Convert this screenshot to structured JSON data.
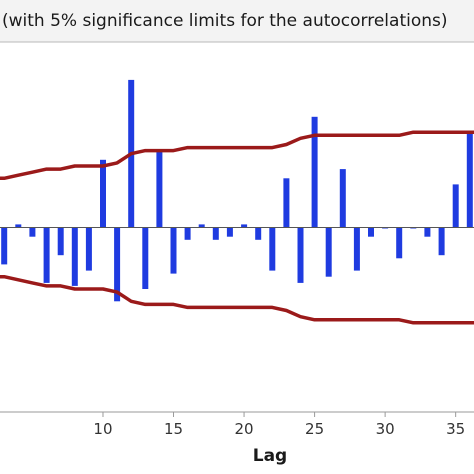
{
  "chart_data": {
    "type": "bar",
    "subtitle": "(with 5% significance limits for the autocorrelations)",
    "xlabel": "Lag",
    "ylabel": "",
    "xlim": [
      2.7,
      36.3
    ],
    "ylim": [
      -0.6,
      0.6
    ],
    "xticks": [
      10,
      15,
      20,
      25,
      30,
      35
    ],
    "grid": false,
    "series": [
      {
        "kind": "acf-bars",
        "x": [
          3,
          4,
          5,
          6,
          7,
          8,
          9,
          10,
          11,
          12,
          13,
          14,
          15,
          16,
          17,
          18,
          19,
          20,
          21,
          22,
          23,
          24,
          25,
          26,
          27,
          28,
          29,
          30,
          31,
          32,
          33,
          34,
          35,
          36
        ],
        "values": [
          -0.12,
          0.01,
          -0.03,
          -0.18,
          -0.09,
          -0.19,
          -0.14,
          0.22,
          -0.24,
          0.48,
          -0.2,
          0.25,
          -0.15,
          -0.04,
          0.01,
          -0.04,
          -0.03,
          0.01,
          -0.04,
          -0.14,
          0.16,
          -0.18,
          0.36,
          -0.16,
          0.19,
          -0.14,
          -0.03,
          0,
          -0.1,
          0,
          -0.03,
          -0.09,
          0.14,
          0.31
        ]
      },
      {
        "kind": "upper-limit",
        "x": [
          3,
          4,
          5,
          6,
          7,
          8,
          9,
          10,
          11,
          12,
          13,
          14,
          15,
          16,
          17,
          18,
          19,
          20,
          21,
          22,
          23,
          24,
          25,
          26,
          27,
          28,
          29,
          30,
          31,
          32,
          33,
          34,
          35,
          36
        ],
        "values": [
          0.16,
          0.17,
          0.18,
          0.19,
          0.19,
          0.2,
          0.2,
          0.2,
          0.21,
          0.24,
          0.25,
          0.25,
          0.25,
          0.26,
          0.26,
          0.26,
          0.26,
          0.26,
          0.26,
          0.26,
          0.27,
          0.29,
          0.3,
          0.3,
          0.3,
          0.3,
          0.3,
          0.3,
          0.3,
          0.31,
          0.31,
          0.31,
          0.31,
          0.31
        ]
      },
      {
        "kind": "lower-limit",
        "x": [
          3,
          4,
          5,
          6,
          7,
          8,
          9,
          10,
          11,
          12,
          13,
          14,
          15,
          16,
          17,
          18,
          19,
          20,
          21,
          22,
          23,
          24,
          25,
          26,
          27,
          28,
          29,
          30,
          31,
          32,
          33,
          34,
          35,
          36
        ],
        "values": [
          -0.16,
          -0.17,
          -0.18,
          -0.19,
          -0.19,
          -0.2,
          -0.2,
          -0.2,
          -0.21,
          -0.24,
          -0.25,
          -0.25,
          -0.25,
          -0.26,
          -0.26,
          -0.26,
          -0.26,
          -0.26,
          -0.26,
          -0.26,
          -0.27,
          -0.29,
          -0.3,
          -0.3,
          -0.3,
          -0.3,
          -0.3,
          -0.3,
          -0.3,
          -0.31,
          -0.31,
          -0.31,
          -0.31,
          -0.31
        ]
      }
    ],
    "colors": {
      "bars": "#1f3be0",
      "limits": "#9b1a1a",
      "zero_line": "#555555",
      "frame": "#b8b8b8",
      "header_bg": "#f3f3f3",
      "plot_bg": "#ffffff",
      "axis_band_bg": "#ffffff"
    }
  }
}
